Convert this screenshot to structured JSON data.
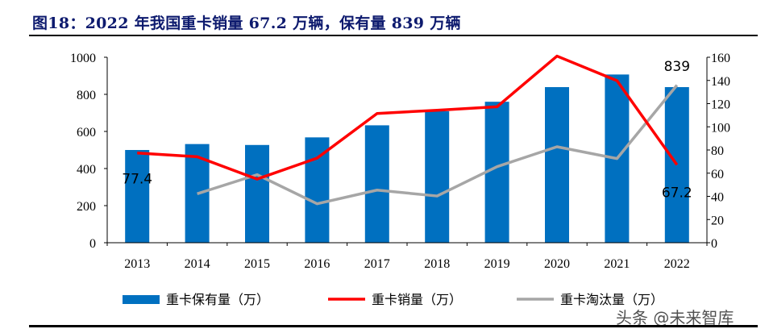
{
  "title": "图18：2022 年我国重卡销量 67.2 万辆，保有量 839 万辆",
  "watermark": "头条 @未来智库",
  "chart_data": {
    "type": "bar+line",
    "categories": [
      "2013",
      "2014",
      "2015",
      "2016",
      "2017",
      "2018",
      "2019",
      "2020",
      "2021",
      "2022"
    ],
    "left_axis": {
      "ylim": [
        0,
        1000
      ],
      "ticks": [
        0,
        200,
        400,
        600,
        800,
        1000
      ]
    },
    "right_axis": {
      "ylim": [
        0,
        160
      ],
      "ticks": [
        0,
        20,
        40,
        60,
        80,
        100,
        120,
        140,
        160
      ]
    },
    "legend_position": "bottom",
    "grid": false,
    "series": [
      {
        "name": "重卡保有量（万）",
        "type": "bar",
        "axis": "left",
        "color": "#0070c0",
        "values": [
          500,
          532,
          527,
          568,
          633,
          709,
          760,
          839,
          907,
          839
        ]
      },
      {
        "name": "重卡销量（万）",
        "type": "line",
        "axis": "right",
        "color": "#ff0000",
        "values": [
          77.4,
          74.2,
          54.9,
          73.0,
          111.5,
          114.3,
          117.3,
          161,
          139.8,
          67.2
        ]
      },
      {
        "name": "重卡淘汰量（万）",
        "type": "line",
        "axis": "right",
        "color": "#a6a6a6",
        "values": [
          null,
          42.2,
          58.7,
          33.6,
          45.4,
          40.3,
          65.6,
          82.8,
          72.6,
          135.9
        ]
      }
    ],
    "data_labels": [
      {
        "series": 1,
        "index": 0,
        "text": "77.4"
      },
      {
        "series": 1,
        "index": 9,
        "text": "67.2"
      },
      {
        "series": 0,
        "index": 9,
        "text": "839"
      }
    ]
  }
}
